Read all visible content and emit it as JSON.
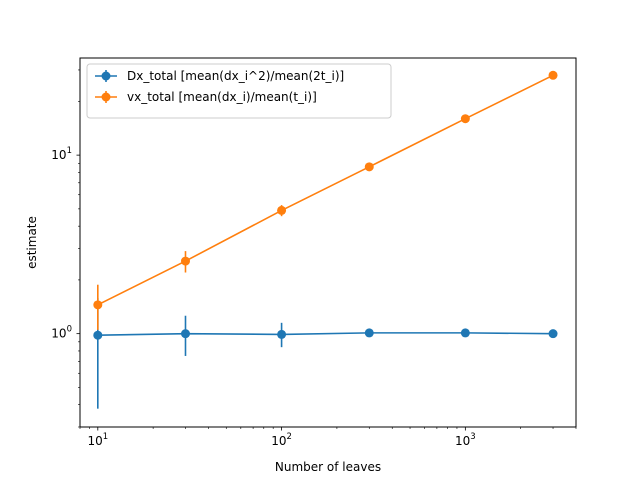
{
  "chart_data": {
    "type": "line",
    "xlabel": "Number of leaves",
    "ylabel": "estimate",
    "xscale": "log",
    "yscale": "log",
    "xlim": [
      8,
      4000
    ],
    "ylim": [
      0.3,
      35
    ],
    "grid": false,
    "legend_position": "top-left",
    "x_ticks": [
      {
        "value": 10,
        "base": "10",
        "exp": "1"
      },
      {
        "value": 100,
        "base": "10",
        "exp": "2"
      },
      {
        "value": 1000,
        "base": "10",
        "exp": "3"
      }
    ],
    "y_ticks": [
      {
        "value": 1,
        "base": "10",
        "exp": "0"
      },
      {
        "value": 10,
        "base": "10",
        "exp": "1"
      }
    ],
    "series": [
      {
        "name": "Dx_total [mean(dx_i^2)/mean(2t_i)]",
        "color": "#1f77b4",
        "marker": "circle",
        "x": [
          10,
          30,
          100,
          300,
          1000,
          3000
        ],
        "y": [
          0.98,
          1.0,
          0.99,
          1.01,
          1.01,
          1.0
        ],
        "y_err_low": [
          0.38,
          0.75,
          0.84,
          0.96,
          0.99,
          0.99
        ],
        "y_err_high": [
          1.58,
          1.26,
          1.15,
          1.06,
          1.03,
          1.01
        ]
      },
      {
        "name": "vx_total [mean(dx_i)/mean(t_i)]",
        "color": "#ff7f0e",
        "marker": "circle",
        "x": [
          10,
          30,
          100,
          300,
          1000,
          3000
        ],
        "y": [
          1.45,
          2.55,
          4.9,
          8.6,
          16.0,
          28.0
        ],
        "y_err_low": [
          1.05,
          2.2,
          4.55,
          8.4,
          15.8,
          27.8
        ],
        "y_err_high": [
          1.88,
          2.9,
          5.25,
          8.8,
          16.2,
          28.2
        ]
      }
    ]
  }
}
